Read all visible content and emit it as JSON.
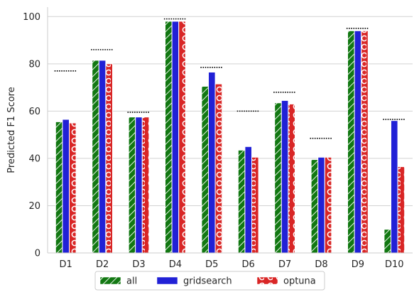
{
  "chart_data": {
    "type": "bar",
    "title": "",
    "xlabel": "",
    "ylabel": "Predicted F1 Score",
    "ylim": [
      0,
      104
    ],
    "yticks": [
      0,
      20,
      40,
      60,
      80,
      100
    ],
    "grid": "horizontal",
    "categories": [
      "D1",
      "D2",
      "D3",
      "D4",
      "D5",
      "D6",
      "D7",
      "D8",
      "D9",
      "D10"
    ],
    "series": [
      {
        "name": "all",
        "color": "#127812",
        "pattern": "diagonal-hatch",
        "values": [
          55.5,
          81.5,
          57.5,
          98.0,
          70.5,
          43.5,
          63.5,
          39.5,
          94.0,
          10.0
        ]
      },
      {
        "name": "gridsearch",
        "color": "#2121d6",
        "pattern": "solid",
        "values": [
          56.5,
          81.5,
          57.5,
          98.0,
          76.5,
          45.0,
          64.5,
          40.5,
          94.0,
          56.0
        ]
      },
      {
        "name": "optuna",
        "color": "#d92626",
        "pattern": "circles",
        "values": [
          55.0,
          80.0,
          57.5,
          98.0,
          71.5,
          40.5,
          63.0,
          40.5,
          94.0,
          36.5
        ]
      }
    ],
    "reference_lines": [
      77.0,
      86.0,
      59.5,
      99.0,
      78.5,
      60.0,
      68.0,
      48.5,
      95.0,
      56.5
    ],
    "legend": {
      "placement": "bottom-center",
      "entries": [
        "all",
        "gridsearch",
        "optuna"
      ]
    }
  }
}
